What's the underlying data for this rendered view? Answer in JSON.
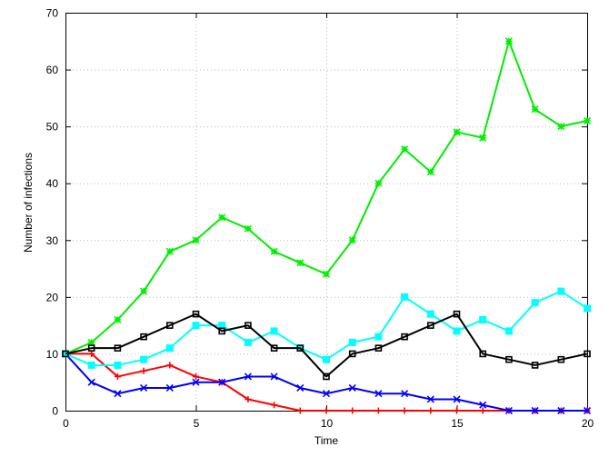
{
  "chart_data": {
    "type": "line",
    "title": "",
    "xlabel": "Time",
    "ylabel": "Number of infections",
    "xlim": [
      0,
      20
    ],
    "ylim": [
      0,
      70
    ],
    "xticks": [
      0,
      5,
      10,
      15,
      20
    ],
    "yticks": [
      0,
      10,
      20,
      30,
      40,
      50,
      60,
      70
    ],
    "grid": true,
    "legend": "none",
    "x": [
      0,
      1,
      2,
      3,
      4,
      5,
      6,
      7,
      8,
      9,
      10,
      11,
      12,
      13,
      14,
      15,
      16,
      17,
      18,
      19,
      20
    ],
    "series": [
      {
        "color": "#ff0000",
        "marker": "plus",
        "values": [
          10,
          10,
          6,
          7,
          8,
          6,
          5,
          2,
          1,
          0,
          0,
          0,
          0,
          0,
          0,
          0,
          0,
          0,
          0,
          0,
          0
        ]
      },
      {
        "color": "#00ee00",
        "marker": "star",
        "values": [
          10,
          12,
          16,
          21,
          28,
          30,
          34,
          32,
          28,
          26,
          24,
          30,
          40,
          46,
          42,
          49,
          48,
          65,
          53,
          50,
          51
        ]
      },
      {
        "color": "#0000ff",
        "marker": "cross",
        "values": [
          10,
          5,
          3,
          4,
          4,
          5,
          5,
          6,
          6,
          4,
          3,
          4,
          3,
          3,
          2,
          2,
          1,
          0,
          0,
          0,
          0
        ]
      },
      {
        "color": "#00ffff",
        "marker": "filled-square",
        "values": [
          10,
          8,
          8,
          9,
          11,
          15,
          15,
          12,
          14,
          11,
          9,
          12,
          13,
          20,
          17,
          14,
          16,
          14,
          19,
          21,
          18
        ]
      },
      {
        "color": "#000000",
        "marker": "open-square",
        "values": [
          10,
          11,
          11,
          13,
          15,
          17,
          14,
          15,
          11,
          11,
          6,
          10,
          11,
          13,
          15,
          17,
          10,
          9,
          8,
          9,
          10
        ]
      }
    ]
  }
}
